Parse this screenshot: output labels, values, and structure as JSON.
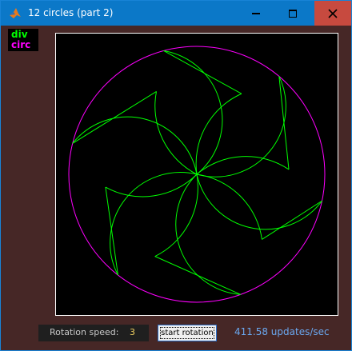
{
  "window": {
    "title": "12 circles (part 2)",
    "icon": "matlab-icon"
  },
  "titlebar_buttons": {
    "minimize": "minimize-icon",
    "maximize": "maximize-icon",
    "close": "close-icon"
  },
  "legend": {
    "entries": [
      {
        "label": "div",
        "color": "#00ff00"
      },
      {
        "label": "circ",
        "color": "#ff00ff"
      }
    ]
  },
  "controls": {
    "speed_label": "Rotation speed:",
    "speed_value": "3",
    "start_button": "start rotation",
    "rate_text": "411.58 updates/sec"
  },
  "colors": {
    "div_line": "#00ff00",
    "circle_line": "#ff00ff",
    "plot_bg": "#000000",
    "window_bg": "#462726",
    "titlebar": "#0b78c8",
    "close_button": "#c74a3f"
  }
}
